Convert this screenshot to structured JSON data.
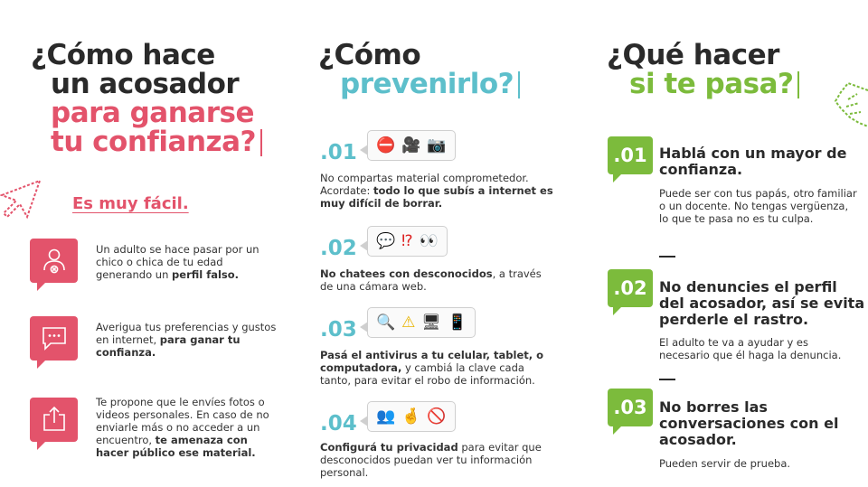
{
  "col1": {
    "title_lines": [
      "¿Cómo hace",
      "un acosador",
      "para ganarse",
      "tu confianza?"
    ],
    "subtitle": "Es muy fácil.",
    "items": [
      {
        "icon": "user-remove-icon",
        "pre": "Un adulto se hace pasar por un chico o chica de tu edad generando un ",
        "bold": "perfil falso.",
        "post": ""
      },
      {
        "icon": "chat-bubble-icon",
        "pre": "Averigua tus preferencias y gustos en internet, ",
        "bold": "para ganar tu confianza.",
        "post": ""
      },
      {
        "icon": "share-upload-icon",
        "pre": "Te propone que le envíes fotos o videos personales.  En caso de no enviarle más o no acceder a un encuentro, ",
        "bold": "te amenaza con hacer público ese material.",
        "post": ""
      }
    ]
  },
  "col2": {
    "title_lines": [
      "¿Cómo",
      "prevenirlo?"
    ],
    "items": [
      {
        "num": ".01",
        "emojis": [
          "⛔",
          "🎥",
          "📷"
        ],
        "pre": "No compartas material comprometedor. Acordate: ",
        "bold": "todo lo que subís a internet es muy difícil de borrar.",
        "post": ""
      },
      {
        "num": ".02",
        "emojis": [
          "💬",
          "⁉",
          "👀"
        ],
        "pre": "",
        "bold": "No chatees con desconocidos",
        "post": ", a través de una cámara web."
      },
      {
        "num": ".03",
        "emojis": [
          "🔍",
          "⚠",
          "🖥",
          "📱"
        ],
        "pre": "",
        "bold": "Pasá el antivirus a tu celular, tablet, o computadora,",
        "post": " y cambiá la clave cada tanto, para evitar el robo de información."
      },
      {
        "num": ".04",
        "emojis": [
          "👥",
          "🤞",
          "🚫"
        ],
        "pre": "",
        "bold": "Configurá tu privacidad",
        "post": " para evitar que desconocidos puedan ver tu información personal."
      }
    ]
  },
  "col3": {
    "title_lines": [
      "¿Qué hacer",
      "si te pasa?"
    ],
    "items": [
      {
        "num": ".01",
        "heading": "Hablá con un mayor de confianza.",
        "text": "Puede ser con tus papás, otro familiar o un docente. No tengas vergüenza, lo que te pasa no es tu culpa."
      },
      {
        "num": ".02",
        "heading": "No denuncies el perfil del acosador, así se evita perderle el rastro.",
        "text": "El adulto te va a ayudar y es necesario que él haga la denuncia."
      },
      {
        "num": ".03",
        "heading": "No borres las conversaciones con el acosador.",
        "text": "Pueden servir de prueba."
      }
    ]
  },
  "colors": {
    "pink": "#e3536b",
    "teal": "#5dbfcb",
    "green": "#7cbb3c",
    "dark": "#2a2a2a"
  }
}
